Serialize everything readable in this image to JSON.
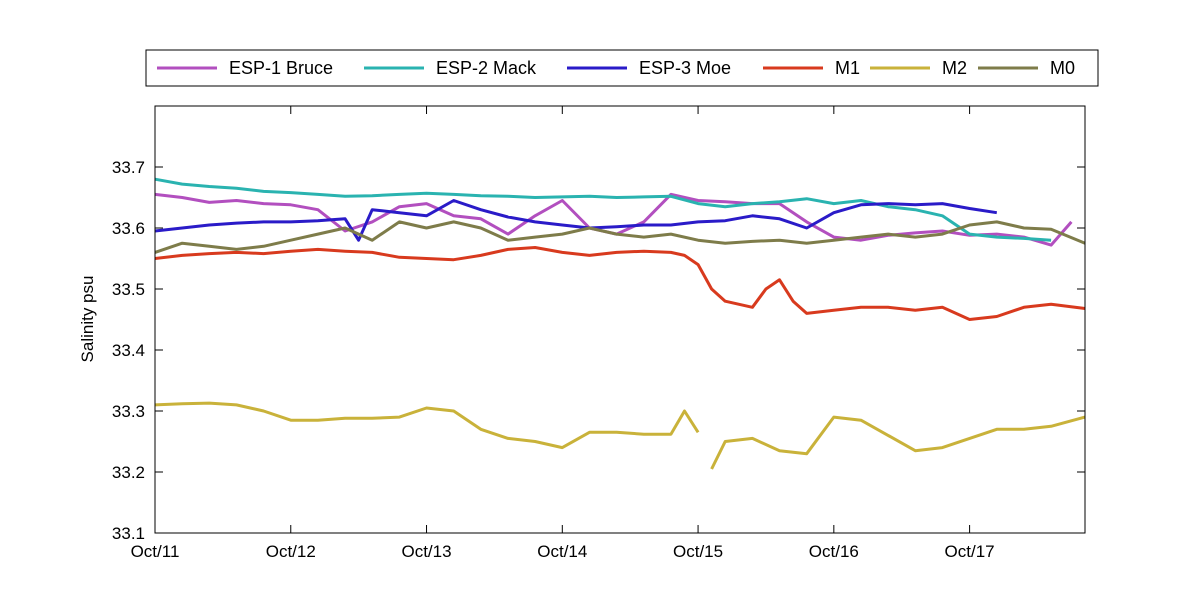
{
  "chart_data": {
    "type": "line",
    "ylabel": "Salinity psu",
    "xlabel": "",
    "title": "",
    "xlim": [
      0,
      6.85
    ],
    "ylim": [
      33.1,
      33.8
    ],
    "x_ticks": [
      {
        "value": 0,
        "label": "Oct/11"
      },
      {
        "value": 1,
        "label": "Oct/12"
      },
      {
        "value": 2,
        "label": "Oct/13"
      },
      {
        "value": 3,
        "label": "Oct/14"
      },
      {
        "value": 4,
        "label": "Oct/15"
      },
      {
        "value": 5,
        "label": "Oct/16"
      },
      {
        "value": 6,
        "label": "Oct/17"
      }
    ],
    "y_ticks": [
      {
        "value": 33.1,
        "label": "33.1"
      },
      {
        "value": 33.2,
        "label": "33.2"
      },
      {
        "value": 33.3,
        "label": "33.3"
      },
      {
        "value": 33.4,
        "label": "33.4"
      },
      {
        "value": 33.5,
        "label": "33.5"
      },
      {
        "value": 33.6,
        "label": "33.6"
      },
      {
        "value": 33.7,
        "label": "33.7"
      }
    ],
    "legend_position": "top (outside plot)",
    "grid": false,
    "series": [
      {
        "name": "ESP-1 Bruce",
        "color": "#B24FBF",
        "x": [
          0,
          0.2,
          0.4,
          0.6,
          0.8,
          1.0,
          1.2,
          1.4,
          1.6,
          1.8,
          2.0,
          2.2,
          2.4,
          2.6,
          2.8,
          3.0,
          3.2,
          3.4,
          3.6,
          3.8,
          4.0,
          4.2,
          4.4,
          4.6,
          4.8,
          5.0,
          5.2,
          5.4,
          5.6,
          5.8,
          6.0,
          6.2,
          6.4,
          6.6,
          6.75
        ],
        "y": [
          33.655,
          33.65,
          33.642,
          33.645,
          33.64,
          33.638,
          33.63,
          33.595,
          33.61,
          33.635,
          33.64,
          33.62,
          33.615,
          33.59,
          33.62,
          33.645,
          33.6,
          33.59,
          33.61,
          33.655,
          33.645,
          33.643,
          33.64,
          33.64,
          33.61,
          33.585,
          33.58,
          33.588,
          33.592,
          33.595,
          33.588,
          33.59,
          33.585,
          33.572,
          33.61
        ]
      },
      {
        "name": "ESP-2 Mack",
        "color": "#2AB3B0",
        "x": [
          0,
          0.2,
          0.4,
          0.6,
          0.8,
          1.0,
          1.2,
          1.4,
          1.6,
          1.8,
          2.0,
          2.2,
          2.4,
          2.6,
          2.8,
          3.0,
          3.2,
          3.4,
          3.6,
          3.8,
          4.0,
          4.2,
          4.4,
          4.6,
          4.8,
          5.0,
          5.2,
          5.4,
          5.6,
          5.8,
          6.0,
          6.2,
          6.4,
          6.6
        ],
        "y": [
          33.68,
          33.672,
          33.668,
          33.665,
          33.66,
          33.658,
          33.655,
          33.652,
          33.653,
          33.655,
          33.657,
          33.655,
          33.653,
          33.652,
          33.65,
          33.651,
          33.652,
          33.65,
          33.651,
          33.652,
          33.64,
          33.635,
          33.64,
          33.643,
          33.648,
          33.64,
          33.645,
          33.635,
          33.63,
          33.62,
          33.59,
          33.585,
          33.583,
          33.58
        ]
      },
      {
        "name": "ESP-3 Moe",
        "color": "#2A1BC8",
        "x": [
          0,
          0.2,
          0.4,
          0.6,
          0.8,
          1.0,
          1.2,
          1.4,
          1.5,
          1.6,
          1.8,
          2.0,
          2.2,
          2.4,
          2.6,
          2.8,
          3.0,
          3.2,
          3.4,
          3.6,
          3.8,
          4.0,
          4.2,
          4.4,
          4.6,
          4.8,
          5.0,
          5.2,
          5.4,
          5.6,
          5.8,
          6.0,
          6.2
        ],
        "y": [
          33.595,
          33.6,
          33.605,
          33.608,
          33.61,
          33.61,
          33.612,
          33.615,
          33.58,
          33.63,
          33.625,
          33.62,
          33.645,
          33.63,
          33.618,
          33.61,
          33.605,
          33.6,
          33.602,
          33.605,
          33.605,
          33.61,
          33.612,
          33.62,
          33.615,
          33.6,
          33.625,
          33.638,
          33.64,
          33.638,
          33.64,
          33.632,
          33.625
        ]
      },
      {
        "name": "M1",
        "color": "#D83A1E",
        "x": [
          0,
          0.2,
          0.4,
          0.6,
          0.8,
          1.0,
          1.2,
          1.4,
          1.6,
          1.8,
          2.0,
          2.2,
          2.4,
          2.6,
          2.8,
          3.0,
          3.2,
          3.4,
          3.6,
          3.8,
          3.9,
          4.0,
          4.1,
          4.2,
          4.4,
          4.5,
          4.6,
          4.7,
          4.8,
          5.0,
          5.2,
          5.4,
          5.6,
          5.8,
          6.0,
          6.2,
          6.4,
          6.6,
          6.85
        ],
        "y": [
          33.55,
          33.555,
          33.558,
          33.56,
          33.558,
          33.562,
          33.565,
          33.562,
          33.56,
          33.552,
          33.55,
          33.548,
          33.555,
          33.565,
          33.568,
          33.56,
          33.555,
          33.56,
          33.562,
          33.56,
          33.555,
          33.54,
          33.5,
          33.48,
          33.47,
          33.5,
          33.515,
          33.48,
          33.46,
          33.465,
          33.47,
          33.47,
          33.465,
          33.47,
          33.45,
          33.455,
          33.47,
          33.475,
          33.468
        ]
      },
      {
        "name": "M2",
        "color": "#C9B23A",
        "x": [
          0,
          0.2,
          0.4,
          0.6,
          0.8,
          1.0,
          1.2,
          1.4,
          1.6,
          1.8,
          2.0,
          2.2,
          2.4,
          2.6,
          2.8,
          3.0,
          3.2,
          3.4,
          3.6,
          3.8,
          3.9,
          4.0,
          4.05,
          4.1,
          4.2,
          4.4,
          4.6,
          4.8,
          5.0,
          5.2,
          5.4,
          5.6,
          5.8,
          6.0,
          6.2,
          6.4,
          6.6,
          6.85
        ],
        "y": [
          33.31,
          33.312,
          33.313,
          33.31,
          33.3,
          33.285,
          33.285,
          33.288,
          33.288,
          33.29,
          33.305,
          33.3,
          33.27,
          33.255,
          33.25,
          33.24,
          33.265,
          33.265,
          33.262,
          33.262,
          33.3,
          33.265,
          null,
          33.205,
          33.25,
          33.255,
          33.235,
          33.23,
          33.29,
          33.285,
          33.26,
          33.235,
          33.24,
          33.255,
          33.27,
          33.27,
          33.275,
          33.29
        ]
      },
      {
        "name": "M0",
        "color": "#7E7C4A",
        "x": [
          0,
          0.2,
          0.4,
          0.6,
          0.8,
          1.0,
          1.2,
          1.4,
          1.6,
          1.8,
          2.0,
          2.2,
          2.4,
          2.6,
          2.8,
          3.0,
          3.2,
          3.4,
          3.6,
          3.8,
          4.0,
          4.2,
          4.4,
          4.6,
          4.8,
          5.0,
          5.2,
          5.4,
          5.6,
          5.8,
          6.0,
          6.2,
          6.4,
          6.6,
          6.85
        ],
        "y": [
          33.56,
          33.575,
          33.57,
          33.565,
          33.57,
          33.58,
          33.59,
          33.6,
          33.58,
          33.61,
          33.6,
          33.61,
          33.6,
          33.58,
          33.585,
          33.59,
          33.6,
          33.59,
          33.585,
          33.59,
          33.58,
          33.575,
          33.578,
          33.58,
          33.575,
          33.58,
          33.585,
          33.59,
          33.585,
          33.59,
          33.605,
          33.61,
          33.6,
          33.598,
          33.575
        ]
      }
    ]
  }
}
